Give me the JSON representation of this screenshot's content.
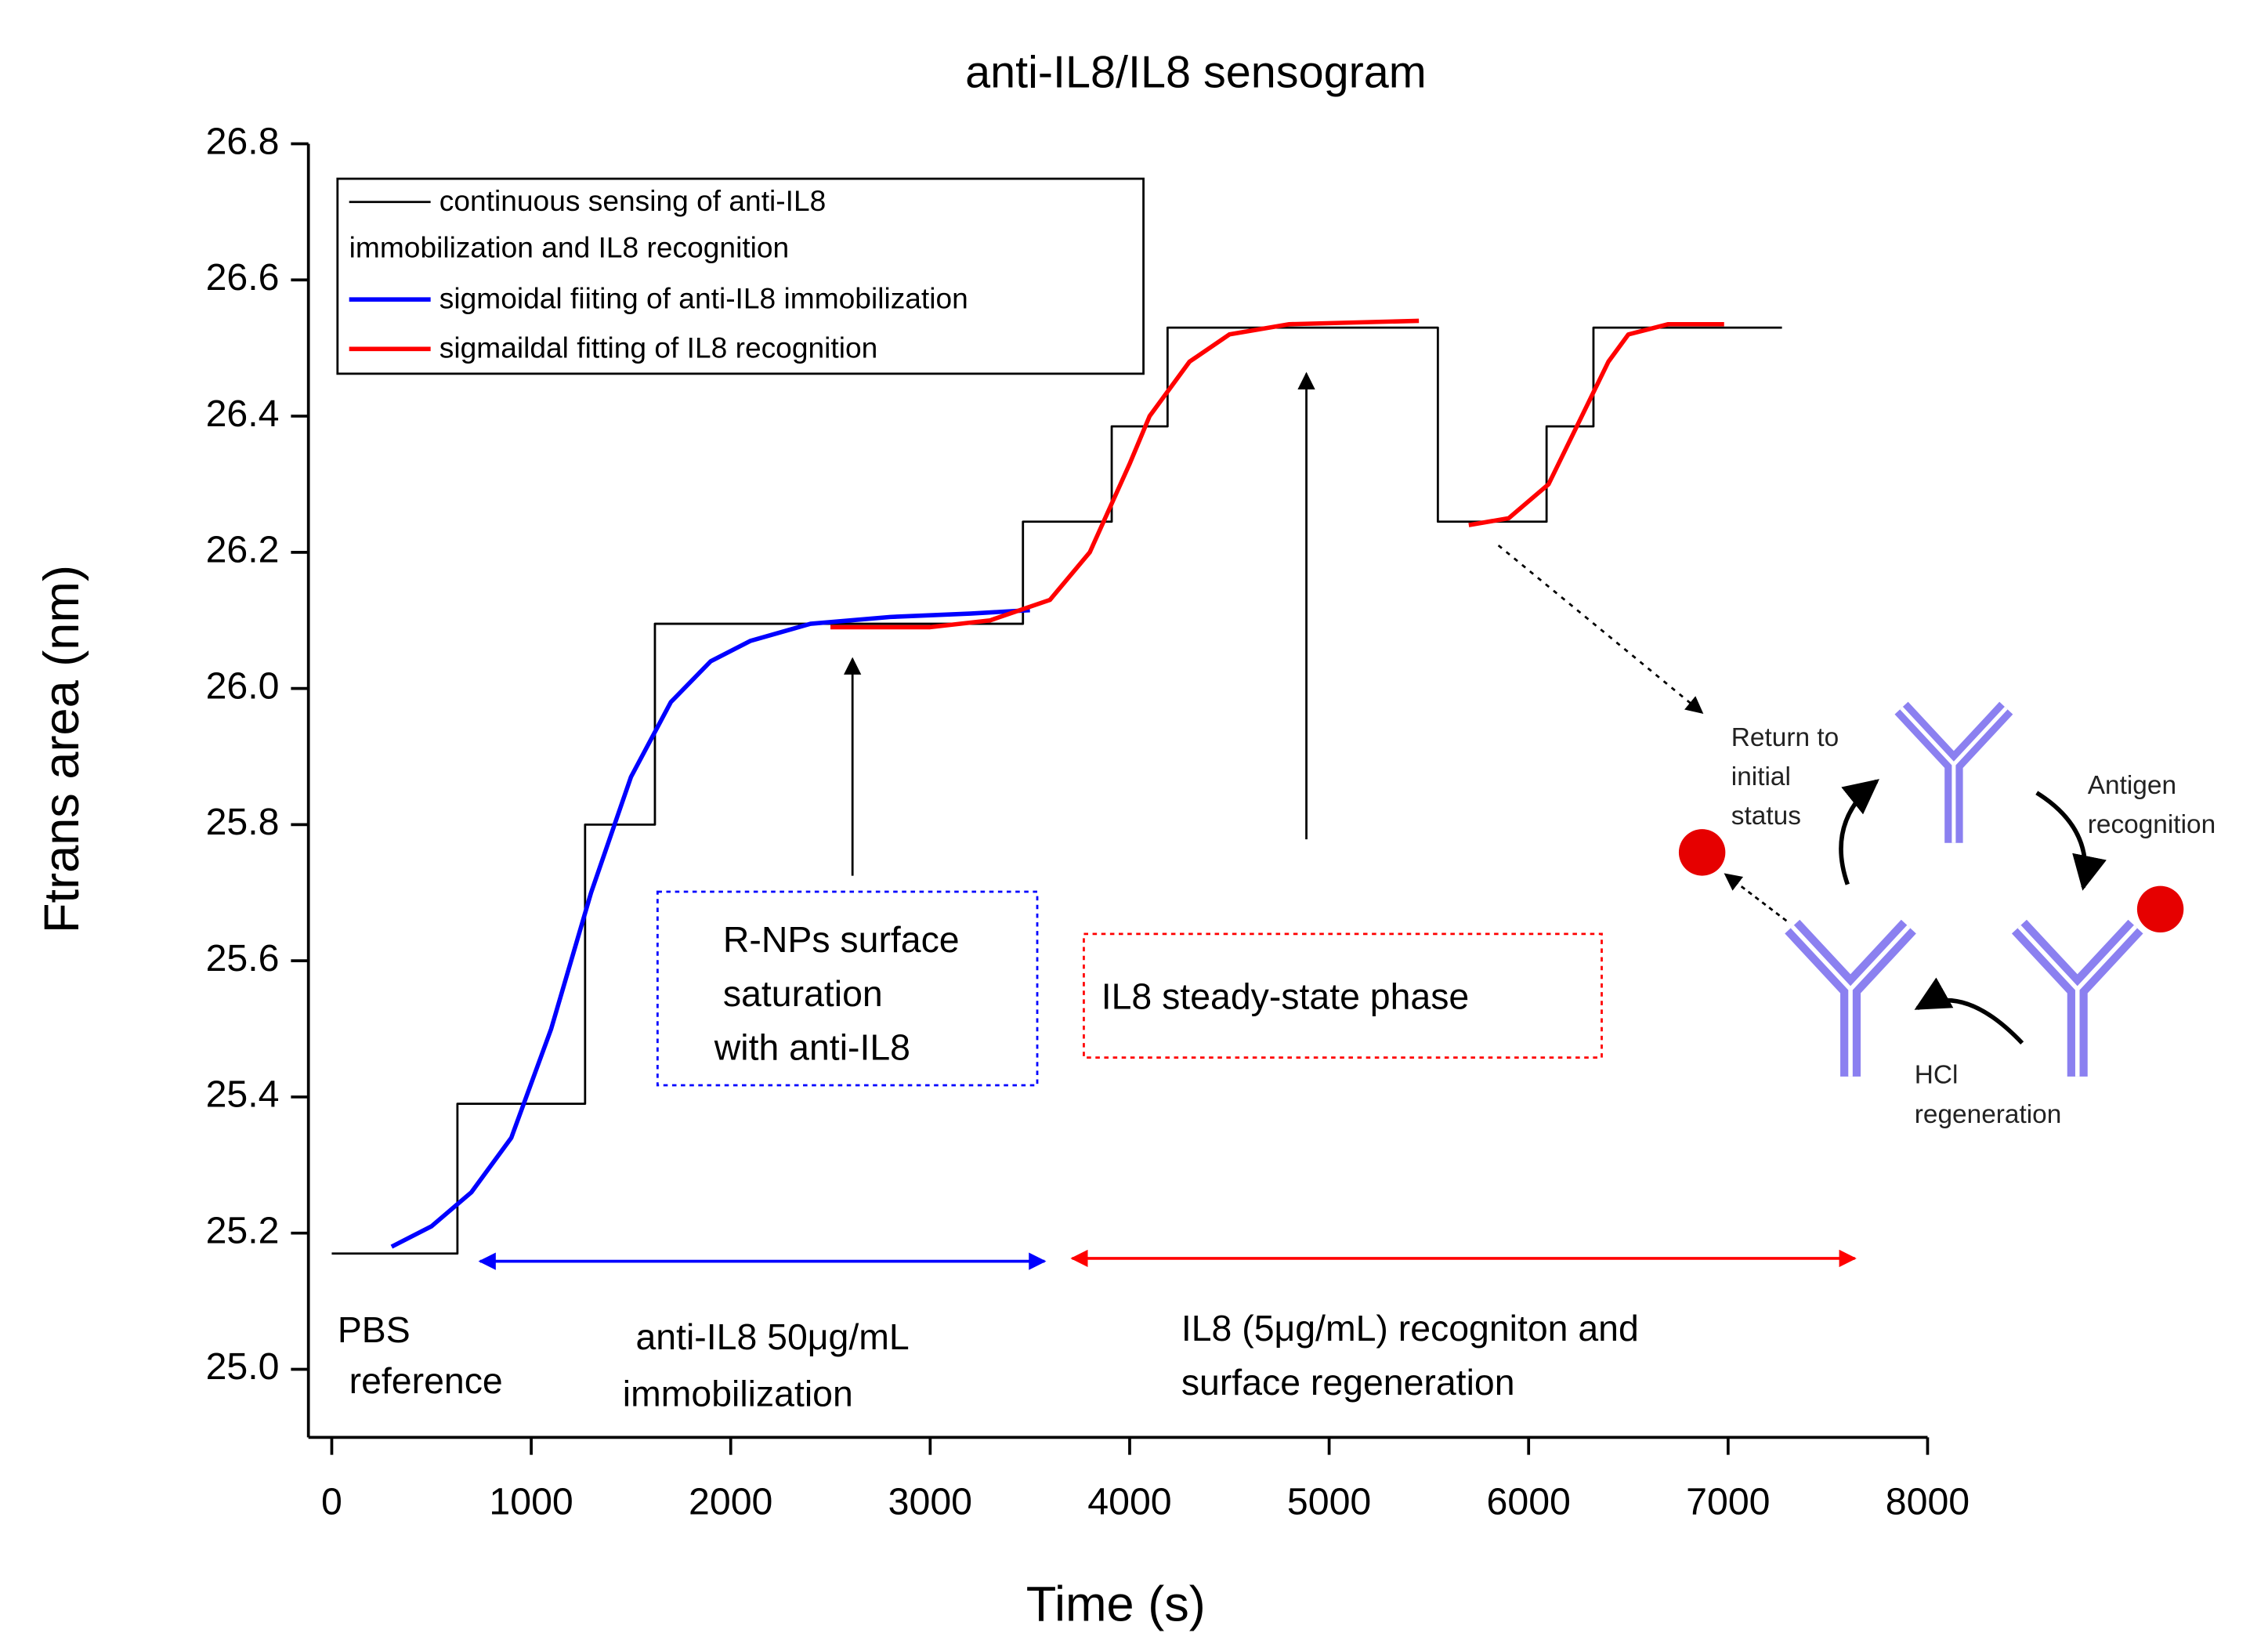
{
  "chart_data": {
    "type": "line",
    "title": "anti-IL8/IL8 sensogram",
    "x_label": "Time (s)",
    "y_label": "Ftrans area (nm)",
    "xlim": [
      -117,
      8000
    ],
    "ylim": [
      24.9,
      26.8
    ],
    "xticks": [
      0,
      1000,
      2000,
      3000,
      4000,
      5000,
      6000,
      7000,
      8000
    ],
    "yticks": [
      {
        "value": 25,
        "label": "25.0"
      },
      25.2,
      25.4,
      25.6,
      25.8,
      {
        "value": 26,
        "label": "26.0"
      },
      26.2,
      26.4,
      26.6,
      26.8
    ],
    "legend_position": "upper left",
    "series": [
      {
        "name": "continuous sensing of anti-IL8 immobilization and IL8 recognition",
        "color": "#000000",
        "x": [
          0,
          630,
          630,
          1270,
          1270,
          1620,
          1620,
          3465,
          3465,
          3910,
          3910,
          4190,
          4190,
          5545,
          5545,
          6090,
          6090,
          6325,
          6325,
          7270
        ],
        "values": [
          25.17,
          25.17,
          25.39,
          25.39,
          25.8,
          25.8,
          26.095,
          26.095,
          26.245,
          26.245,
          26.385,
          26.385,
          26.53,
          26.53,
          26.245,
          26.245,
          26.385,
          26.385,
          26.53,
          26.53
        ]
      },
      {
        "name": "sigmoidal fiiting of anti-IL8 immobilization",
        "color": "#0000ff",
        "x": [
          300,
          500,
          700,
          900,
          1100,
          1300,
          1500,
          1700,
          1900,
          2100,
          2400,
          2800,
          3200,
          3500
        ],
        "values": [
          25.18,
          25.21,
          25.26,
          25.34,
          25.5,
          25.7,
          25.87,
          25.98,
          26.04,
          26.07,
          26.095,
          26.105,
          26.11,
          26.115
        ]
      },
      {
        "name": "sigmaildal fitting of IL8 recognition",
        "color": "#ff0000",
        "x": [
          2500,
          3000,
          3300,
          3600,
          3800,
          4000,
          4100,
          4300,
          4500,
          4800,
          5450,
          null,
          5700,
          5900,
          6100,
          6200,
          6300,
          6400,
          6500,
          6700,
          6980
        ],
        "values": [
          26.09,
          26.09,
          26.1,
          26.13,
          26.2,
          26.33,
          26.4,
          26.48,
          26.52,
          26.535,
          26.54,
          null,
          26.24,
          26.25,
          26.3,
          26.36,
          26.42,
          26.48,
          26.52,
          26.535,
          26.535
        ]
      }
    ],
    "annotations": [
      {
        "lines": [
          "PBS",
          "reference"
        ]
      },
      {
        "lines": [
          "anti-IL8  50μg/mL",
          "immobilization"
        ]
      },
      {
        "lines": [
          "IL8 (5μg/mL) recogniton and",
          "surface regeneration"
        ]
      },
      {
        "lines": [
          "R-NPs surface",
          "saturation",
          "with anti-IL8"
        ]
      },
      {
        "lines": [
          "IL8 steady-state phase"
        ]
      },
      {
        "lines": [
          "Return to",
          "initial",
          "status"
        ]
      },
      {
        "lines": [
          "Antigen",
          "recognition"
        ]
      },
      {
        "lines": [
          "HCl",
          "regeneration"
        ]
      }
    ]
  }
}
